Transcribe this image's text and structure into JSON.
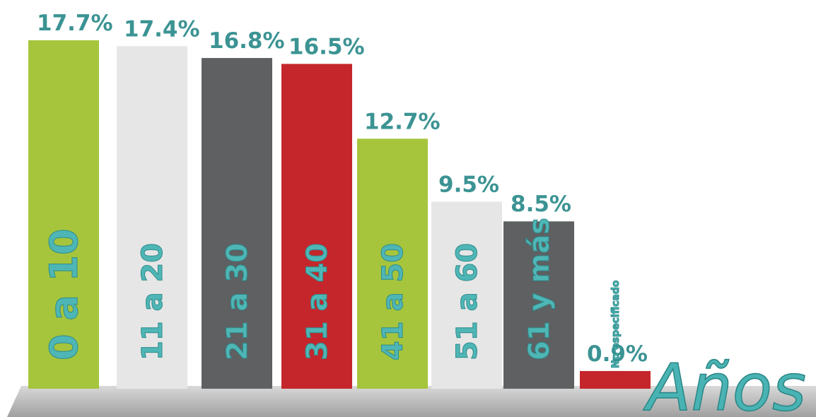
{
  "chart_data": {
    "type": "bar",
    "categories": [
      "0 a 10",
      "11 a 20",
      "21 a 30",
      "31 a 40",
      "41 a 50",
      "51 a 60",
      "61 y más",
      "No especificado"
    ],
    "values": [
      17.7,
      17.4,
      16.8,
      16.5,
      12.7,
      9.5,
      8.5,
      0.9
    ],
    "value_labels": [
      "17.7%",
      "17.4%",
      "16.8%",
      "16.5%",
      "12.7%",
      "9.5%",
      "8.5%",
      "0.9%"
    ],
    "colors": [
      "#a6c53c",
      "#e6e6e6",
      "#5e6062",
      "#c5262b",
      "#a6c53c",
      "#e6e6e6",
      "#5e6062",
      "#c5262b"
    ],
    "axis_label": "Años"
  }
}
